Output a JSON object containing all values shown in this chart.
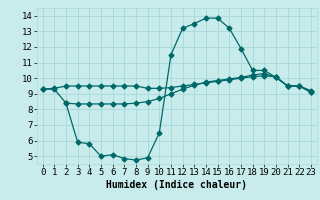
{
  "title": "",
  "xlabel": "Humidex (Indice chaleur)",
  "bg_color": "#c8ecec",
  "grid_color": "#a8d8d8",
  "line_color": "#006868",
  "xlim": [
    -0.5,
    23.5
  ],
  "ylim": [
    4.5,
    14.5
  ],
  "xticks": [
    0,
    1,
    2,
    3,
    4,
    5,
    6,
    7,
    8,
    9,
    10,
    11,
    12,
    13,
    14,
    15,
    16,
    17,
    18,
    19,
    20,
    21,
    22,
    23
  ],
  "yticks": [
    5,
    6,
    7,
    8,
    9,
    10,
    11,
    12,
    13,
    14
  ],
  "line1_x": [
    0,
    1,
    2,
    3,
    4,
    5,
    6,
    7,
    8,
    9,
    10,
    11,
    12,
    13,
    14,
    15,
    16,
    17,
    18,
    19,
    20,
    21,
    22,
    23
  ],
  "line1_y": [
    9.3,
    9.35,
    9.5,
    9.5,
    9.5,
    9.5,
    9.5,
    9.5,
    9.5,
    9.35,
    9.35,
    9.4,
    9.5,
    9.6,
    9.7,
    9.8,
    9.9,
    10.0,
    10.1,
    10.15,
    10.1,
    9.5,
    9.5,
    9.2
  ],
  "line2_x": [
    0,
    1,
    2,
    3,
    4,
    5,
    6,
    7,
    8,
    9,
    10,
    11,
    12,
    13,
    14,
    15,
    16,
    17,
    18,
    19,
    20,
    21,
    22,
    23
  ],
  "line2_y": [
    9.3,
    9.3,
    8.4,
    8.35,
    8.35,
    8.35,
    8.35,
    8.35,
    8.4,
    8.5,
    8.7,
    9.0,
    9.3,
    9.55,
    9.75,
    9.85,
    9.95,
    10.05,
    10.2,
    10.3,
    10.05,
    9.5,
    9.5,
    9.1
  ],
  "line3_x": [
    2,
    3,
    4,
    5,
    6,
    7,
    8,
    9,
    10,
    11,
    12,
    13,
    14,
    15,
    16,
    17,
    18,
    19,
    20,
    21,
    22,
    23
  ],
  "line3_y": [
    8.4,
    5.9,
    5.8,
    5.0,
    5.1,
    4.85,
    4.75,
    4.9,
    6.5,
    11.5,
    13.2,
    13.5,
    13.85,
    13.85,
    13.2,
    11.9,
    10.5,
    10.5,
    10.05,
    9.5,
    9.5,
    9.1
  ],
  "marker_size": 2.5,
  "linewidth": 0.9,
  "font_size_xlabel": 7,
  "font_size_ticks": 6.5
}
